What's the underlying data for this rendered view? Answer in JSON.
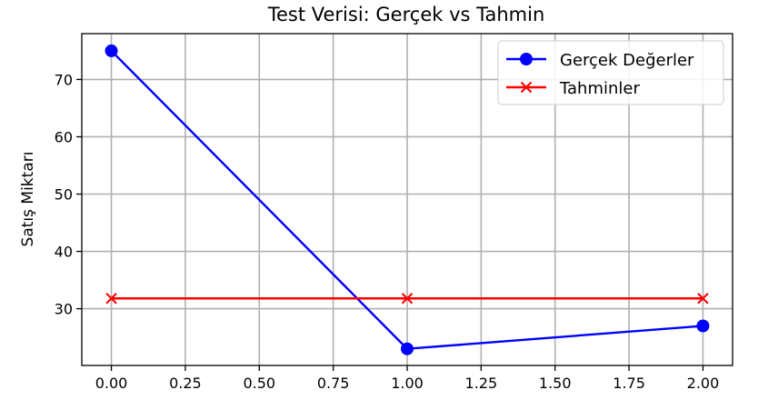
{
  "chart_data": {
    "type": "line",
    "title": "Test Verisi: Gerçek vs Tahmin",
    "xlabel": "",
    "ylabel": "Satış Miktarı",
    "x": [
      0,
      1,
      2
    ],
    "xlim": [
      -0.1,
      2.1
    ],
    "ylim": [
      20.1,
      78.0
    ],
    "xticks": [
      "0.00",
      "0.25",
      "0.50",
      "0.75",
      "1.00",
      "1.25",
      "1.50",
      "1.75",
      "2.00"
    ],
    "yticks": [
      "30",
      "40",
      "50",
      "60",
      "70"
    ],
    "grid": true,
    "legend_position": "top-right",
    "series": [
      {
        "name": "Gerçek Değerler",
        "values": [
          75,
          23,
          27
        ],
        "color": "#0000ff",
        "marker": "circle"
      },
      {
        "name": "Tahminler",
        "values": [
          31.8,
          31.8,
          31.8
        ],
        "color": "#ff0000",
        "marker": "x"
      }
    ]
  }
}
